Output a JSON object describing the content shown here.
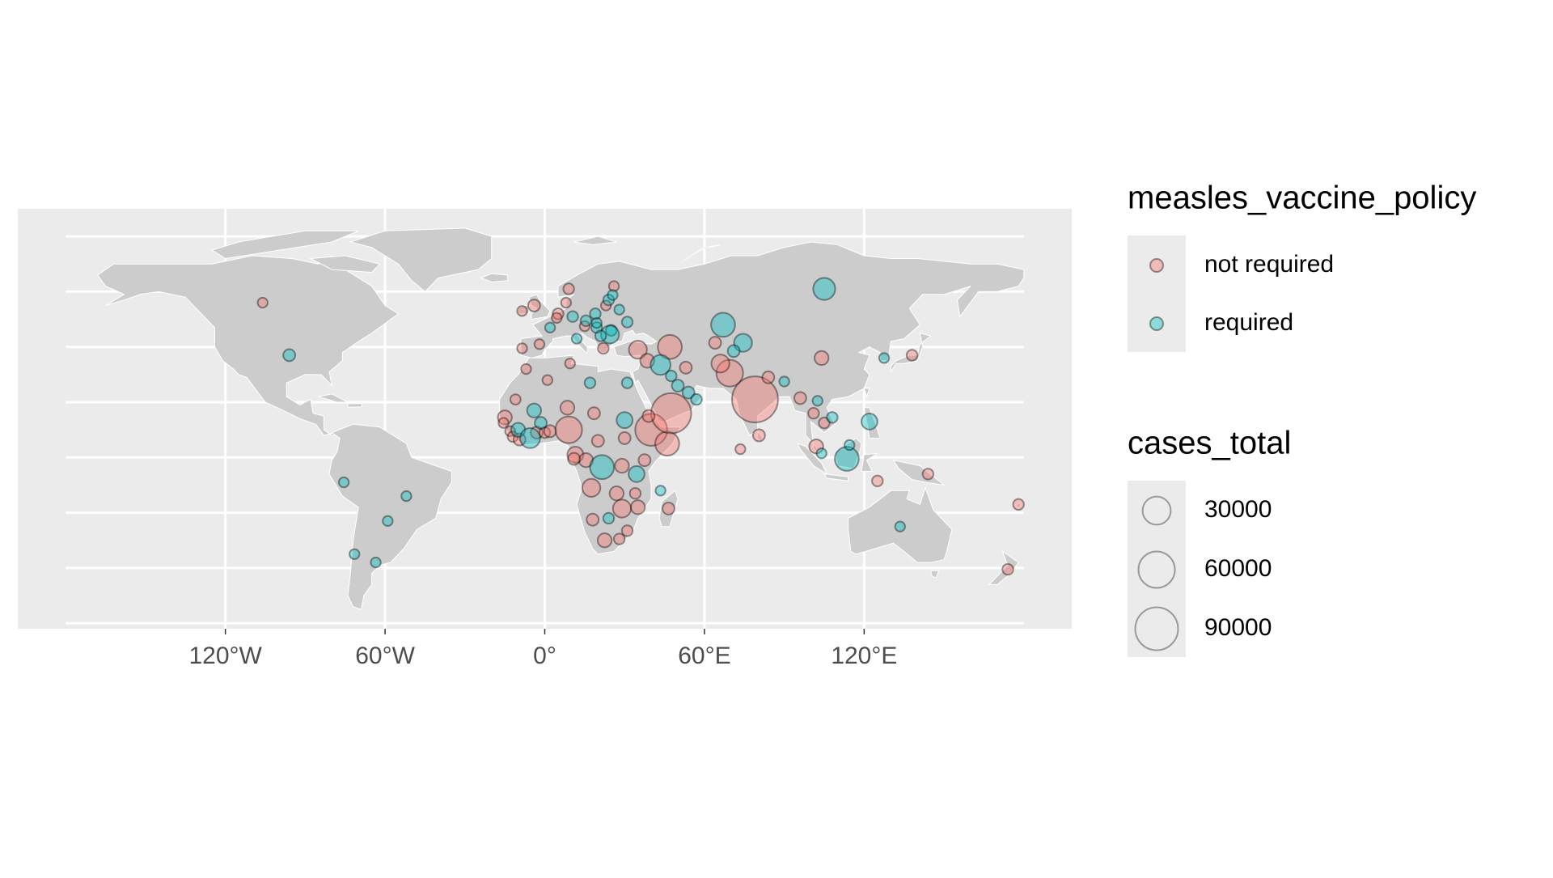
{
  "chart_data": {
    "type": "bubble-map",
    "xlim": [
      -198,
      198
    ],
    "ylim": [
      -62,
      90
    ],
    "xticks": [
      {
        "value": -120,
        "label": "120°W"
      },
      {
        "value": -60,
        "label": "60°W"
      },
      {
        "value": 0,
        "label": "0°"
      },
      {
        "value": 60,
        "label": "60°E"
      },
      {
        "value": 120,
        "label": "120°E"
      }
    ],
    "y_gridlines": [
      80,
      60,
      40,
      20,
      0,
      -20,
      -40,
      -60
    ],
    "color_legend_title": "measles_vaccine_policy",
    "size_legend_title": "cases_total",
    "size_breaks": [
      30000,
      60000,
      90000
    ],
    "series": [
      {
        "name": "not required",
        "color": "#F8766D",
        "x": [
          -106,
          -4,
          -8.5,
          -8.5,
          -2,
          -7,
          1,
          -11,
          8.5,
          18.5,
          -15,
          -15.5,
          -13,
          -12,
          -3,
          0,
          2,
          9,
          11.5,
          20,
          30,
          40,
          46,
          47.5,
          29,
          15.5,
          11,
          17.5,
          27,
          34,
          35,
          46.5,
          29,
          18,
          22.5,
          28,
          31,
          35,
          38.5,
          47,
          53,
          64,
          69.5,
          66,
          79,
          84,
          80.5,
          73.5,
          96,
          101,
          105,
          102,
          104,
          138,
          125,
          144,
          174,
          178,
          9,
          8,
          26,
          23,
          5,
          4.5,
          15,
          22,
          37.5,
          39,
          9.5,
          -9.5
        ],
        "y": [
          56,
          55,
          53,
          39.5,
          41,
          32,
          28,
          21,
          18,
          16,
          14.5,
          12.5,
          9.5,
          7.5,
          9,
          9,
          9.5,
          10,
          1,
          6,
          7,
          10,
          5,
          16,
          -3,
          -1,
          -0.5,
          -11,
          -13,
          -13,
          -18,
          -18.5,
          -18.5,
          -22.5,
          -30,
          -29.5,
          -26.5,
          39,
          35,
          40,
          32.5,
          41.5,
          30.5,
          34,
          21,
          29,
          8,
          3,
          21.5,
          16,
          12.5,
          4,
          36,
          37,
          -8.5,
          -6,
          -40.5,
          -17,
          61,
          56,
          62,
          55,
          52,
          50.5,
          47.5,
          39.5,
          -1,
          15,
          34,
          6.5
        ],
        "size": [
          300,
          1200,
          300,
          300,
          300,
          300,
          300,
          400,
          2700,
          1200,
          2700,
          300,
          300,
          400,
          1200,
          600,
          1200,
          26000,
          4750,
          1200,
          1200,
          42800,
          19000,
          76000,
          2700,
          2700,
          1200,
          7400,
          2700,
          600,
          2700,
          1200,
          7400,
          1200,
          2700,
          600,
          600,
          7400,
          2700,
          19000,
          1200,
          1200,
          26000,
          7400,
          107000,
          1200,
          1200,
          300,
          1200,
          600,
          600,
          2700,
          2700,
          600,
          600,
          600,
          600,
          600,
          600,
          300,
          300,
          300,
          600,
          300,
          300,
          600,
          1200,
          1200,
          300,
          1200
        ]
      },
      {
        "name": "required",
        "color": "#00BFC4",
        "x": [
          -96,
          -75.5,
          -52,
          -59,
          -71.5,
          -63.5,
          2,
          10.5,
          19,
          15.5,
          19.5,
          25,
          24.5,
          31,
          28,
          12,
          21,
          24,
          19.5,
          17,
          31,
          -4,
          -1.5,
          -10,
          -5.5,
          30,
          21.5,
          34.5,
          24,
          43.5,
          43.5,
          47.5,
          50,
          54,
          57,
          67,
          74.5,
          71,
          90,
          102.5,
          108,
          104,
          113.5,
          122,
          114.5,
          105,
          127.5,
          133.5,
          25.5
        ],
        "y": [
          37,
          -9,
          -14,
          -23,
          -35,
          -38,
          47,
          51,
          52,
          49.5,
          47,
          46,
          44.5,
          49,
          53.5,
          43,
          44,
          57,
          48.7,
          27,
          27,
          17,
          12.5,
          10,
          7,
          13.5,
          -3.5,
          -6,
          -22,
          -12,
          33.5,
          29.5,
          26,
          23.5,
          21,
          48,
          41.5,
          38.5,
          27.5,
          20.5,
          14.5,
          1.5,
          -0.5,
          13,
          4.5,
          61,
          36,
          -25,
          58.8
        ],
        "size": [
          1200,
          300,
          300,
          300,
          300,
          300,
          300,
          600,
          600,
          600,
          600,
          600,
          7400,
          600,
          300,
          300,
          600,
          600,
          300,
          600,
          600,
          2700,
          1200,
          2700,
          10700,
          4750,
          19000,
          4750,
          600,
          300,
          10700,
          600,
          1200,
          1200,
          600,
          19000,
          7400,
          1200,
          300,
          300,
          600,
          300,
          19000,
          4750,
          300,
          14600,
          300,
          300,
          300
        ]
      }
    ]
  }
}
